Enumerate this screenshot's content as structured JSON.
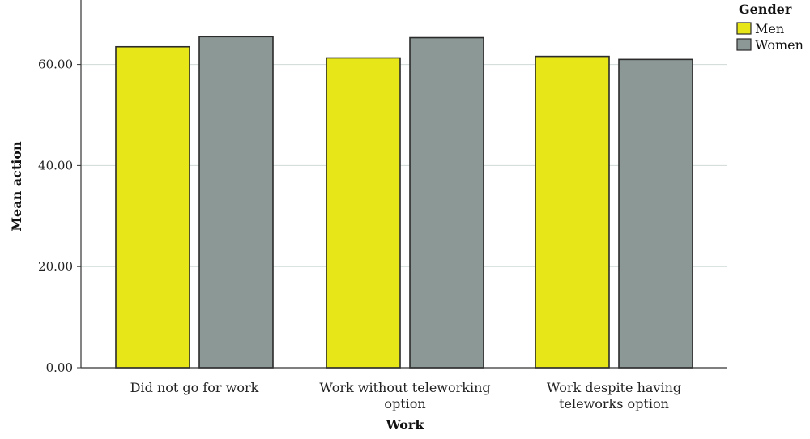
{
  "chart_data": {
    "type": "bar",
    "xlabel": "Work",
    "ylabel": "Mean action",
    "categories": [
      [
        "Did not go for work"
      ],
      [
        "Work without teleworking",
        "option"
      ],
      [
        "Work despite having",
        "teleworks option"
      ]
    ],
    "series": [
      {
        "name": "Men",
        "color": "#e6e619",
        "values": [
          63.5,
          61.3,
          61.6
        ]
      },
      {
        "name": "Women",
        "color": "#8c9896",
        "values": [
          65.5,
          65.3,
          61.0
        ]
      }
    ],
    "ylim": [
      0,
      70
    ],
    "yticks": [
      0,
      20,
      40,
      60
    ],
    "ytick_labels": [
      "0.00",
      "20.00",
      "40.00",
      "60.00"
    ],
    "legend": {
      "title": "Gender",
      "placement": "top-right"
    },
    "grid": true
  }
}
